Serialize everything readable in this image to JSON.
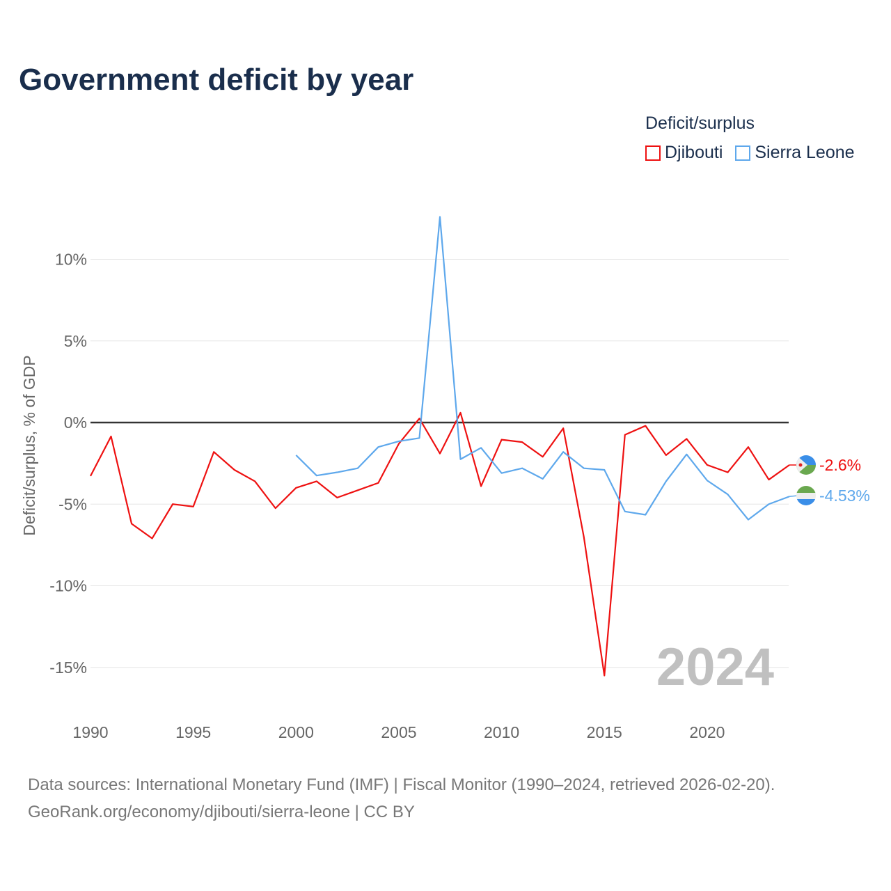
{
  "chart_data": {
    "type": "line",
    "title": "Government deficit by year",
    "ylabel": "Deficit/surplus, % of GDP",
    "xlabel": "",
    "xlim": [
      1990,
      2024
    ],
    "ylim": [
      -18,
      14
    ],
    "x_ticks": [
      1990,
      1995,
      2000,
      2005,
      2010,
      2015,
      2020
    ],
    "y_ticks": [
      10,
      5,
      0,
      -5,
      -10,
      -15
    ],
    "y_tick_labels": [
      "10%",
      "5%",
      "0%",
      "-5%",
      "-10%",
      "-15%"
    ],
    "x_tick_labels": [
      "1990",
      "1995",
      "2000",
      "2005",
      "2010",
      "2015",
      "2020"
    ],
    "grid": true,
    "legend_title": "Deficit/surplus",
    "legend_position": "top-right",
    "year_watermark": "2024",
    "series": [
      {
        "name": "Djibouti",
        "color": "#ee1111",
        "end_label": "-2.6%",
        "x": [
          1990,
          1991,
          1992,
          1993,
          1994,
          1995,
          1996,
          1997,
          1998,
          1999,
          2000,
          2001,
          2002,
          2003,
          2004,
          2005,
          2006,
          2007,
          2008,
          2009,
          2010,
          2011,
          2012,
          2013,
          2014,
          2015,
          2016,
          2017,
          2018,
          2019,
          2020,
          2021,
          2022,
          2023,
          2024
        ],
        "values": [
          -3.28,
          -0.85,
          -6.2,
          -7.1,
          -5.0,
          -5.15,
          -1.8,
          -2.9,
          -3.6,
          -5.25,
          -4.0,
          -3.6,
          -4.6,
          -4.15,
          -3.7,
          -1.3,
          0.25,
          -1.9,
          0.6,
          -3.9,
          -1.05,
          -1.2,
          -2.1,
          -0.35,
          -7.0,
          -15.5,
          -0.75,
          -0.2,
          -2.0,
          -1.0,
          -2.6,
          -3.05,
          -1.5,
          -3.5,
          -2.6
        ]
      },
      {
        "name": "Sierra Leone",
        "color": "#5ea8ec",
        "end_label": "-4.53%",
        "x": [
          2000,
          2001,
          2002,
          2003,
          2004,
          2005,
          2006,
          2007,
          2008,
          2009,
          2010,
          2011,
          2012,
          2013,
          2014,
          2015,
          2016,
          2017,
          2018,
          2019,
          2020,
          2021,
          2022,
          2023,
          2024
        ],
        "values": [
          -2.0,
          -3.25,
          -3.05,
          -2.8,
          -1.5,
          -1.15,
          -0.95,
          12.6,
          -2.25,
          -1.55,
          -3.1,
          -2.8,
          -3.45,
          -1.8,
          -2.8,
          -2.9,
          -5.45,
          -5.65,
          -3.6,
          -1.95,
          -3.55,
          -4.4,
          -5.95,
          -5.0,
          -4.53
        ]
      }
    ]
  },
  "footer": {
    "line1": "Data sources: International Monetary Fund (IMF) | Fiscal Monitor (1990–2024, retrieved 2026-02-20).",
    "line2": "GeoRank.org/economy/djibouti/sierra-leone | CC BY"
  }
}
